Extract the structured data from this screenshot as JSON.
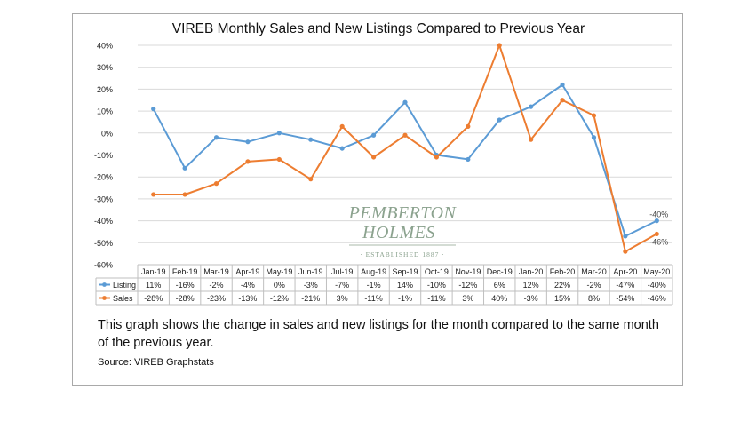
{
  "title": "VIREB Monthly Sales and New Listings Compared to Previous Year",
  "caption": "This graph shows the change in sales and new listings for the month compared to the same month of the previous year.",
  "source": "Source: VIREB Graphstats",
  "watermark": {
    "line1": "PEMBERTON",
    "line2": "HOLMES",
    "line3": "· ESTABLISHED 1887 ·"
  },
  "colors": {
    "listing": "#5B9BD5",
    "sales": "#ED7D31",
    "grid": "#D9D9D9",
    "watermark": "#8BA28E"
  },
  "chart_data": {
    "type": "line",
    "title": "VIREB Monthly Sales and New Listings Compared to Previous Year",
    "categories": [
      "Jan-19",
      "Feb-19",
      "Mar-19",
      "Apr-19",
      "May-19",
      "Jun-19",
      "Jul-19",
      "Aug-19",
      "Sep-19",
      "Oct-19",
      "Nov-19",
      "Dec-19",
      "Jan-20",
      "Feb-20",
      "Mar-20",
      "Apr-20",
      "May-20"
    ],
    "yticks": [
      "40%",
      "30%",
      "20%",
      "10%",
      "0%",
      "-10%",
      "-20%",
      "-30%",
      "-40%",
      "-50%",
      "-60%"
    ],
    "ylim": [
      -60,
      40
    ],
    "grid": true,
    "legend": "data-table",
    "series": [
      {
        "name": "Listing",
        "values": [
          11,
          -16,
          -2,
          -4,
          0,
          -3,
          -7,
          -1,
          14,
          -10,
          -12,
          6,
          12,
          22,
          -2,
          -47,
          -40
        ],
        "labels": [
          "11%",
          "-16%",
          "-2%",
          "-4%",
          "0%",
          "-3%",
          "-7%",
          "-1%",
          "14%",
          "-10%",
          "-12%",
          "6%",
          "12%",
          "22%",
          "-2%",
          "-47%",
          "-40%"
        ]
      },
      {
        "name": "Sales",
        "values": [
          -28,
          -28,
          -23,
          -13,
          -12,
          -21,
          3,
          -11,
          -1,
          -11,
          3,
          40,
          -3,
          15,
          8,
          -54,
          -46
        ],
        "labels": [
          "-28%",
          "-28%",
          "-23%",
          "-13%",
          "-12%",
          "-21%",
          "3%",
          "-11%",
          "-1%",
          "-11%",
          "3%",
          "40%",
          "-3%",
          "15%",
          "8%",
          "-54%",
          "-46%"
        ]
      }
    ],
    "end_labels": [
      "-40%",
      "-46%"
    ]
  }
}
